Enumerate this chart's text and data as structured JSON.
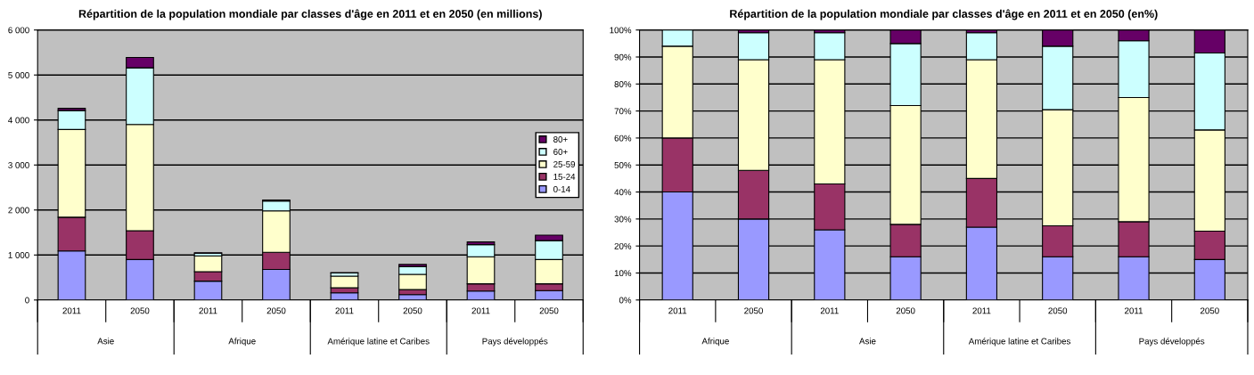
{
  "chart_data": [
    {
      "type": "bar",
      "title": "Répartition de la population mondiale par classes d'âge en 2011 et en 2050 (en millions)",
      "stacked": true,
      "categories": [
        "2011",
        "2050",
        "2011",
        "2050",
        "2011",
        "2050",
        "2011",
        "2050"
      ],
      "annotations": [
        "Asie",
        "Afrique",
        "Amérique latine et Caribes",
        "Pays développés"
      ],
      "series": [
        {
          "name": "0-14",
          "color": "#9999ff",
          "values": [
            1090,
            900,
            420,
            680,
            160,
            120,
            200,
            210
          ]
        },
        {
          "name": "15-24",
          "color": "#993366",
          "values": [
            750,
            640,
            210,
            380,
            110,
            110,
            160,
            150
          ]
        },
        {
          "name": "25-59",
          "color": "#ffffcc",
          "values": [
            1950,
            2360,
            350,
            920,
            260,
            340,
            600,
            540
          ]
        },
        {
          "name": "60+",
          "color": "#ccffff",
          "values": [
            420,
            1260,
            60,
            220,
            70,
            170,
            270,
            420
          ]
        },
        {
          "name": "80+",
          "color": "#660066",
          "values": [
            50,
            230,
            10,
            20,
            10,
            50,
            60,
            120
          ]
        }
      ],
      "ylim": [
        0,
        6000
      ],
      "yticks": [
        0,
        {
          "value": 1000,
          "label": "1 000"
        },
        {
          "value": 2000,
          "label": "2 000"
        },
        {
          "value": 3000,
          "label": "3 000"
        },
        {
          "value": 4000,
          "label": "4 000"
        },
        {
          "value": 5000,
          "label": "5 000"
        },
        {
          "value": 6000,
          "label": "6 000"
        }
      ],
      "grid": "y",
      "legend": "right"
    },
    {
      "type": "bar",
      "title": "Répartition de la population mondiale par classes d'âge en 2011 et en 2050 (en%)",
      "stacked": true,
      "categories": [
        "2011",
        "2050",
        "2011",
        "2050",
        "2011",
        "2050",
        "2011",
        "2050"
      ],
      "annotations": [
        "Afrique",
        "Asie",
        "Amérique latine et Caribes",
        "Pays développés"
      ],
      "series": [
        {
          "color": "#9999ff",
          "values": [
            40,
            30,
            26,
            16,
            27,
            16,
            16,
            15
          ]
        },
        {
          "color": "#993366",
          "values": [
            20,
            18,
            17,
            12,
            18,
            11.5,
            13,
            10.5
          ]
        },
        {
          "color": "#ffffcc",
          "values": [
            34,
            41,
            46,
            44,
            44,
            43,
            46,
            37.5
          ]
        },
        {
          "color": "#ccffff",
          "values": [
            6,
            10,
            10,
            23,
            10,
            23.5,
            21,
            28.5
          ]
        },
        {
          "color": "#660066",
          "values": [
            null,
            1,
            1,
            5,
            1,
            6,
            4,
            8.5
          ]
        }
      ],
      "ylim": [
        0,
        100
      ],
      "yticks": [
        {
          "value": 0,
          "label": "0%"
        },
        {
          "value": 10,
          "label": "10%"
        },
        {
          "value": 20,
          "label": "20%"
        },
        {
          "value": 30,
          "label": "30%"
        },
        {
          "value": 40,
          "label": "40%"
        },
        {
          "value": 50,
          "label": "50%"
        },
        {
          "value": 60,
          "label": "60%"
        },
        {
          "value": 70,
          "label": "70%"
        },
        {
          "value": 80,
          "label": "80%"
        },
        {
          "value": 90,
          "label": "90%"
        },
        {
          "value": 100,
          "label": "100%"
        }
      ],
      "grid": "y"
    }
  ]
}
